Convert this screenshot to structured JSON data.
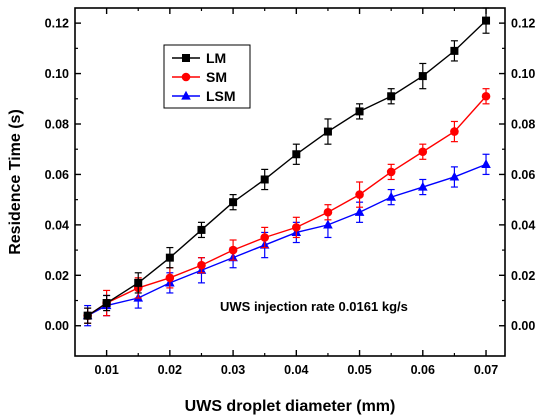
{
  "chart_data": {
    "type": "line",
    "title": "",
    "xlabel": "UWS droplet diameter (mm)",
    "ylabel": "Residence Time (s)",
    "xlim": [
      0.005,
      0.073
    ],
    "ylim": [
      -0.012,
      0.126
    ],
    "x_ticks": [
      "0.01",
      "0.02",
      "0.03",
      "0.04",
      "0.05",
      "0.06",
      "0.07"
    ],
    "y_ticks": [
      "0.00",
      "0.02",
      "0.04",
      "0.06",
      "0.08",
      "0.10",
      "0.12"
    ],
    "right_y_axis": "mirrors left axis",
    "annotation": "UWS injection rate 0.0161 kg/s",
    "legend_position": "top-left",
    "x": [
      0.007,
      0.01,
      0.015,
      0.02,
      0.025,
      0.03,
      0.035,
      0.04,
      0.045,
      0.05,
      0.055,
      0.06,
      0.065,
      0.07
    ],
    "series": [
      {
        "name": "LM",
        "color": "#000000",
        "marker": "square",
        "values": [
          0.004,
          0.009,
          0.017,
          0.027,
          0.038,
          0.049,
          0.058,
          0.068,
          0.077,
          0.085,
          0.091,
          0.099,
          0.109,
          0.121
        ],
        "errors": [
          0.003,
          0.003,
          0.004,
          0.004,
          0.003,
          0.003,
          0.004,
          0.004,
          0.005,
          0.003,
          0.003,
          0.005,
          0.004,
          0.005
        ]
      },
      {
        "name": "SM",
        "color": "#ff0000",
        "marker": "circle",
        "values": [
          0.004,
          0.009,
          0.015,
          0.019,
          0.024,
          0.03,
          0.035,
          0.039,
          0.045,
          0.052,
          0.061,
          0.069,
          0.077,
          0.091
        ],
        "errors": [
          0.003,
          0.005,
          0.004,
          0.004,
          0.003,
          0.004,
          0.004,
          0.004,
          0.003,
          0.005,
          0.003,
          0.003,
          0.004,
          0.003
        ]
      },
      {
        "name": "LSM",
        "color": "#0000ff",
        "marker": "triangle",
        "values": [
          0.004,
          0.008,
          0.011,
          0.017,
          0.022,
          0.027,
          0.032,
          0.037,
          0.04,
          0.045,
          0.051,
          0.055,
          0.059,
          0.064
        ],
        "errors": [
          0.004,
          0.004,
          0.004,
          0.004,
          0.005,
          0.004,
          0.005,
          0.004,
          0.005,
          0.004,
          0.003,
          0.003,
          0.004,
          0.004
        ]
      }
    ]
  }
}
